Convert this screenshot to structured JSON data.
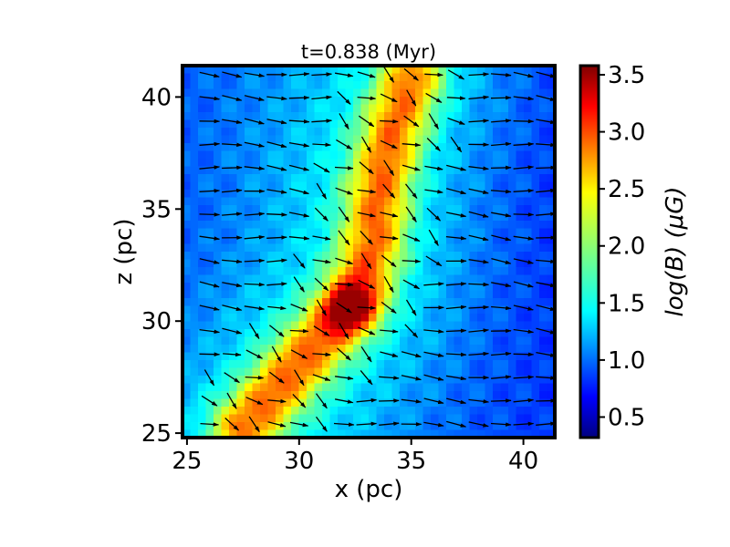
{
  "chart_data": {
    "type": "heatmap",
    "title": "t=0.838 (Myr)",
    "xlabel": "x (pc)",
    "ylabel": "z (pc)",
    "xlim": [
      24.8,
      41.4
    ],
    "ylim": [
      24.8,
      41.4
    ],
    "x_ticks": [
      25,
      30,
      35,
      40
    ],
    "y_ticks": [
      25,
      30,
      35,
      40
    ],
    "grid": false,
    "colormap": "jet",
    "colorbar": {
      "label": "log(B) (μG)",
      "range": [
        0.32,
        3.58
      ],
      "ticks": [
        0.5,
        1.0,
        1.5,
        2.0,
        2.5,
        3.0,
        3.5
      ]
    },
    "overlay": "magnetic field direction vectors (quiver)",
    "field_description": {
      "background_logB": 0.8,
      "filament_ridge": [
        [
          27.5,
          25.2
        ],
        [
          29.5,
          27.5
        ],
        [
          31.5,
          29.8
        ],
        [
          32.6,
          31.2
        ],
        [
          33.3,
          33.5
        ],
        [
          33.6,
          36.0
        ],
        [
          34.2,
          38.5
        ],
        [
          35.0,
          40.8
        ]
      ],
      "filament_peak_logB": 3.5,
      "hotspot": {
        "x": 32.3,
        "z": 30.6,
        "logB": 3.5
      }
    }
  }
}
